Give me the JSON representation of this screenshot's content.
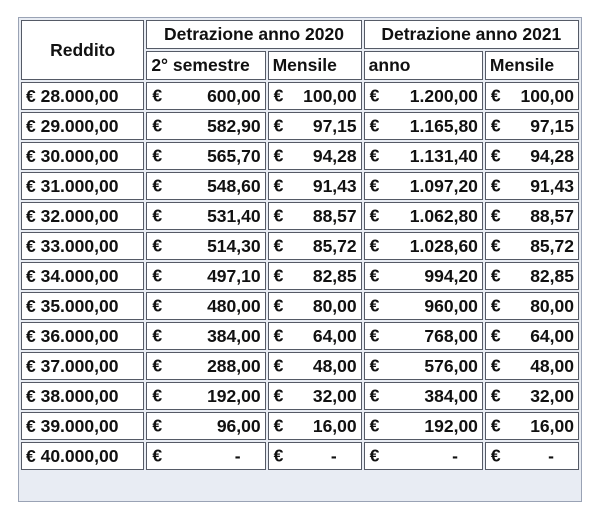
{
  "headers": {
    "reddito": "Reddito",
    "group_2020": "Detrazione anno 2020",
    "group_2021": "Detrazione anno 2021",
    "sub_2020_a": "2° semestre",
    "sub_2020_b": "Mensile",
    "sub_2021_a": "anno",
    "sub_2021_b": "Mensile"
  },
  "currency": "€",
  "rows": [
    {
      "reddito": "€ 28.000,00",
      "sem2020": "600,00",
      "mens2020": "100,00",
      "anno2021": "1.200,00",
      "mens2021": "100,00"
    },
    {
      "reddito": "€ 29.000,00",
      "sem2020": "582,90",
      "mens2020": "97,15",
      "anno2021": "1.165,80",
      "mens2021": "97,15"
    },
    {
      "reddito": "€ 30.000,00",
      "sem2020": "565,70",
      "mens2020": "94,28",
      "anno2021": "1.131,40",
      "mens2021": "94,28"
    },
    {
      "reddito": "€ 31.000,00",
      "sem2020": "548,60",
      "mens2020": "91,43",
      "anno2021": "1.097,20",
      "mens2021": "91,43"
    },
    {
      "reddito": "€ 32.000,00",
      "sem2020": "531,40",
      "mens2020": "88,57",
      "anno2021": "1.062,80",
      "mens2021": "88,57"
    },
    {
      "reddito": "€ 33.000,00",
      "sem2020": "514,30",
      "mens2020": "85,72",
      "anno2021": "1.028,60",
      "mens2021": "85,72"
    },
    {
      "reddito": "€ 34.000,00",
      "sem2020": "497,10",
      "mens2020": "82,85",
      "anno2021": "994,20",
      "mens2021": "82,85"
    },
    {
      "reddito": "€ 35.000,00",
      "sem2020": "480,00",
      "mens2020": "80,00",
      "anno2021": "960,00",
      "mens2021": "80,00"
    },
    {
      "reddito": "€ 36.000,00",
      "sem2020": "384,00",
      "mens2020": "64,00",
      "anno2021": "768,00",
      "mens2021": "64,00"
    },
    {
      "reddito": "€ 37.000,00",
      "sem2020": "288,00",
      "mens2020": "48,00",
      "anno2021": "576,00",
      "mens2021": "48,00"
    },
    {
      "reddito": "€ 38.000,00",
      "sem2020": "192,00",
      "mens2020": "32,00",
      "anno2021": "384,00",
      "mens2021": "32,00"
    },
    {
      "reddito": "€ 39.000,00",
      "sem2020": "96,00",
      "mens2020": "16,00",
      "anno2021": "192,00",
      "mens2021": "16,00"
    },
    {
      "reddito": "€ 40.000,00",
      "sem2020": "-",
      "mens2020": "-",
      "anno2021": "-",
      "mens2021": "-"
    }
  ]
}
